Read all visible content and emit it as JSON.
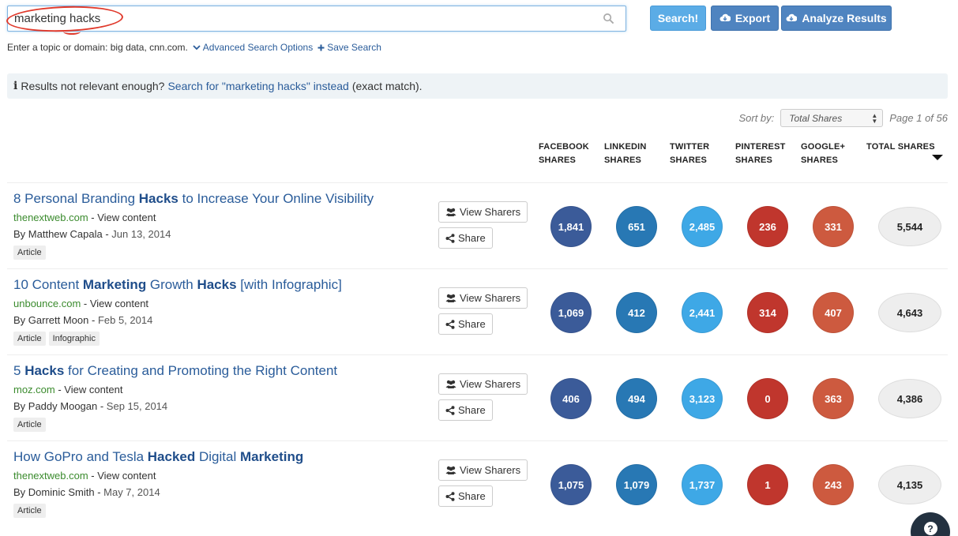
{
  "search": {
    "value": "marketing hacks"
  },
  "buttons": {
    "search": "Search!",
    "export": "Export",
    "analyze": "Analyze Results"
  },
  "hint": {
    "text": "Enter a topic or domain: big data, cnn.com.",
    "advanced": "Advanced Search Options",
    "save": "Save Search"
  },
  "notice": {
    "prefix": "Results not relevant enough?",
    "link": "Search for \"marketing hacks\" instead",
    "suffix": "(exact match)."
  },
  "sort": {
    "label": "Sort by:",
    "selected": "Total Shares",
    "page": "Page 1 of 56"
  },
  "columns": {
    "facebook": [
      "FACEBOOK",
      "SHARES"
    ],
    "linkedin": [
      "LINKEDIN",
      "SHARES"
    ],
    "twitter": [
      "TWITTER",
      "SHARES"
    ],
    "pinterest": [
      "PINTEREST",
      "SHARES"
    ],
    "googleplus": [
      "GOOGLE+",
      "SHARES"
    ],
    "total": [
      "TOTAL SHARES",
      ""
    ]
  },
  "row_actions": {
    "view_sharers": "View Sharers",
    "share": "Share",
    "view_content": "View content"
  },
  "results": [
    {
      "title_parts": [
        "8 Personal Branding ",
        "Hacks",
        " to Increase Your Online Visibility"
      ],
      "domain": "thenextweb.com",
      "author": "By Matthew Capala",
      "date": "Jun 13, 2014",
      "tags": [
        "Article"
      ],
      "facebook": "1,841",
      "linkedin": "651",
      "twitter": "2,485",
      "pinterest": "236",
      "googleplus": "331",
      "total": "5,544"
    },
    {
      "title_parts": [
        "10 Content ",
        "Marketing",
        " Growth ",
        "Hacks",
        " [with Infographic]"
      ],
      "domain": "unbounce.com",
      "author": "By Garrett Moon",
      "date": "Feb 5, 2014",
      "tags": [
        "Article",
        "Infographic"
      ],
      "facebook": "1,069",
      "linkedin": "412",
      "twitter": "2,441",
      "pinterest": "314",
      "googleplus": "407",
      "total": "4,643"
    },
    {
      "title_parts": [
        "5 ",
        "Hacks",
        " for Creating and Promoting the Right Content"
      ],
      "domain": "moz.com",
      "author": "By Paddy Moogan",
      "date": "Sep 15, 2014",
      "tags": [
        "Article"
      ],
      "facebook": "406",
      "linkedin": "494",
      "twitter": "3,123",
      "pinterest": "0",
      "googleplus": "363",
      "total": "4,386"
    },
    {
      "title_parts": [
        "How GoPro and Tesla ",
        "Hacked",
        " Digital ",
        "Marketing"
      ],
      "domain": "thenextweb.com",
      "author": "By Dominic Smith",
      "date": "May 7, 2014",
      "tags": [
        "Article"
      ],
      "facebook": "1,075",
      "linkedin": "1,079",
      "twitter": "1,737",
      "pinterest": "1",
      "googleplus": "243",
      "total": "4,135"
    }
  ],
  "help": {
    "label": "?"
  },
  "colors": {
    "facebook": "#3b5b99",
    "linkedin": "#2878b4",
    "twitter": "#3ea8e6",
    "pinterest": "#c0362d",
    "googleplus": "#cd5a3f",
    "link": "#2a5c9a",
    "domain": "#3b8b2e"
  }
}
